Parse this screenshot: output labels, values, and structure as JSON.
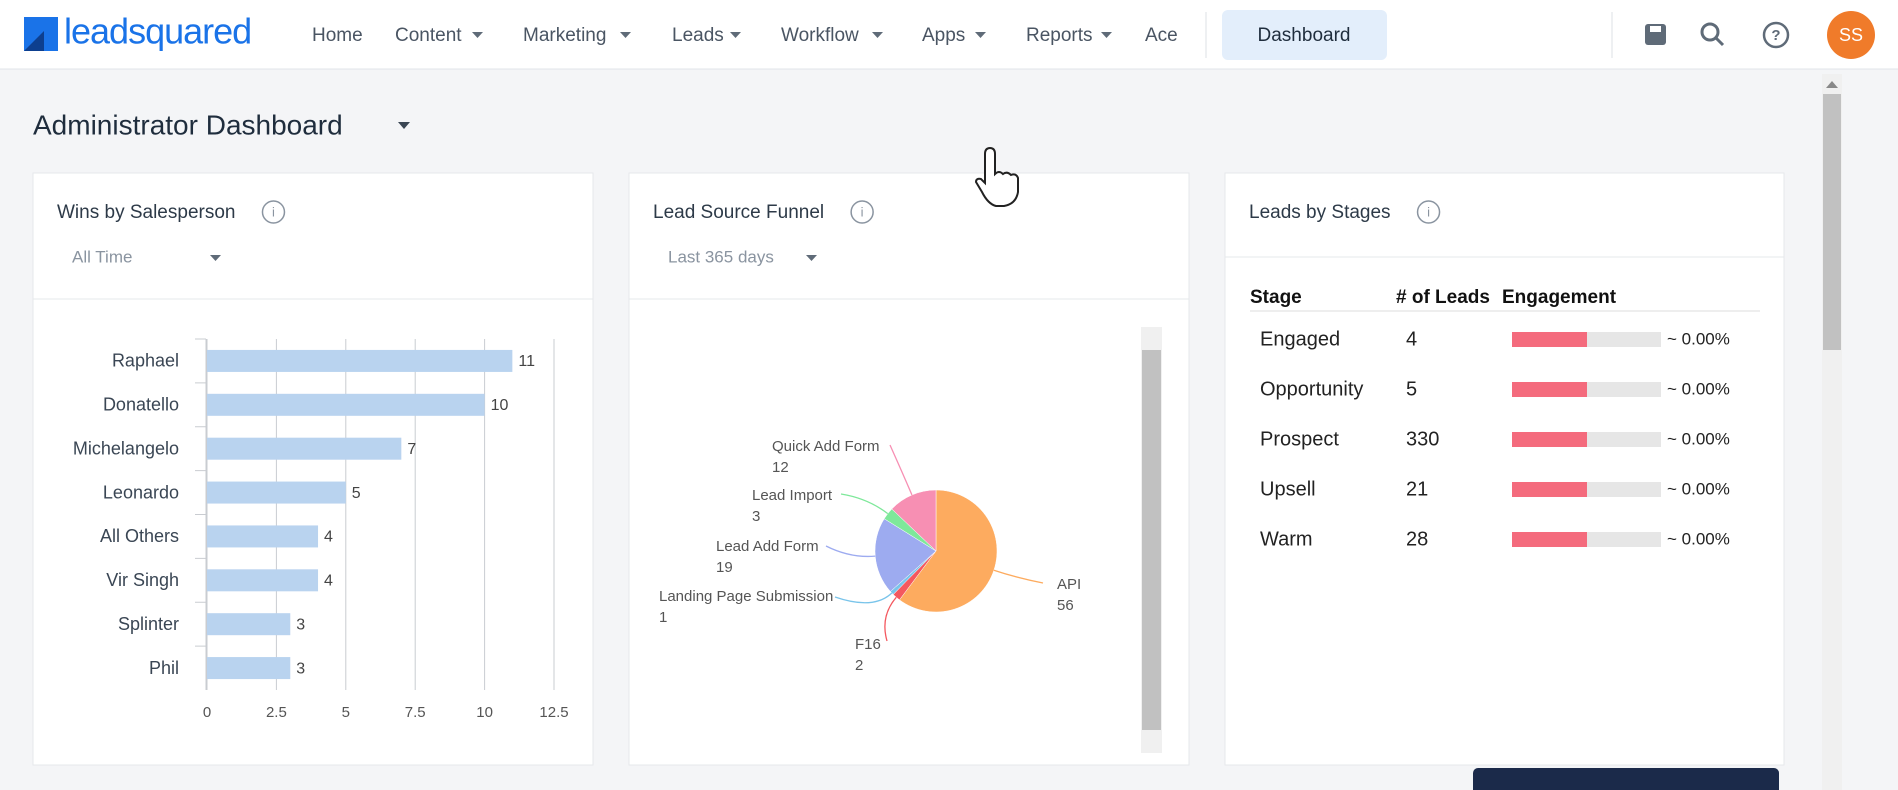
{
  "nav": {
    "logo": "leadsquared",
    "items": [
      "Home",
      "Content",
      "Marketing",
      "Leads",
      "Workflow",
      "Apps",
      "Reports",
      "Ace"
    ],
    "active": "Dashboard",
    "avatar": "SS"
  },
  "dashboard": {
    "title": "Administrator Dashboard"
  },
  "chart_data": [
    {
      "type": "hbar",
      "title": "Wins by Salesperson",
      "filter": "All Time",
      "categories": [
        "Raphael",
        "Donatello",
        "Michelangelo",
        "Leonardo",
        "All Others",
        "Vir Singh",
        "Splinter",
        "Phil"
      ],
      "values": [
        11,
        10,
        7,
        5,
        4,
        4,
        3,
        3
      ],
      "color": "#b9d3ef",
      "xlim": [
        0,
        12.5
      ],
      "xticks": [
        0,
        2.5,
        5,
        7.5,
        10,
        12.5
      ],
      "grid": true
    },
    {
      "type": "pie",
      "title": "Lead Source Funnel",
      "filter": "Last 365 days",
      "categories": [
        "API",
        "F16",
        "Landing Page Submission",
        "Lead Add Form",
        "Lead Import",
        "Quick Add Form"
      ],
      "values": [
        56,
        2,
        1,
        19,
        3,
        12
      ],
      "colors": [
        "#fdab5f",
        "#f4585f",
        "#79c4ea",
        "#9dabf0",
        "#7ee89a",
        "#f78fb3"
      ]
    }
  ],
  "stages": {
    "title": "Leads by Stages",
    "columns": [
      "Stage",
      "# of Leads",
      "Engagement"
    ],
    "rows": [
      [
        "Engaged",
        "4",
        "~ 0.00%"
      ],
      [
        "Opportunity",
        "5",
        "~ 0.00%"
      ],
      [
        "Prospect",
        "330",
        "~ 0.00%"
      ],
      [
        "Upsell",
        "21",
        "~ 0.00%"
      ],
      [
        "Warm",
        "28",
        "~ 0.00%"
      ]
    ]
  }
}
